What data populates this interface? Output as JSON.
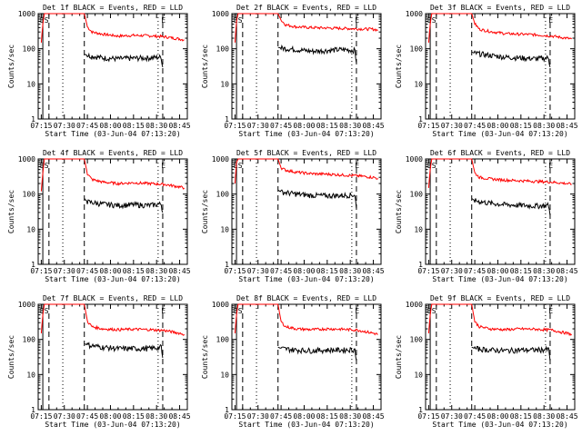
{
  "figure": {
    "background": "#ffffff",
    "events_color": "#000000",
    "lld_color": "#ff0000"
  },
  "common": {
    "title_suffix": "BLACK = Events, RED = LLD",
    "ylabel": "Counts/sec",
    "xlabel": "Start Time (03-Jun-04 07:13:20)",
    "x_tick_labels": [
      "07:15",
      "07:30",
      "07:45",
      "08:00",
      "08:15",
      "08:30",
      "08:45"
    ],
    "y_tick_labels": [
      "1",
      "10",
      "100",
      "1000"
    ],
    "markers": {
      "solid_line_at": "07:16",
      "dashed_lines_at": [
        "07:20",
        "07:43",
        "08:34"
      ],
      "dotted_lines_at": [
        "07:29",
        "08:31"
      ],
      "text": [
        {
          "label": "E",
          "at": "07:14"
        },
        {
          "label": "S",
          "at": "07:17"
        },
        {
          "label": "E",
          "at": "08:33"
        }
      ]
    }
  },
  "chart_data": [
    {
      "type": "line",
      "title": "Det 1f BLACK = Events, RED = LLD",
      "xlabel": "Start Time (03-Jun-04 07:13:20)",
      "ylabel": "Counts/sec",
      "yscale": "log",
      "ylim": [
        1,
        1000
      ],
      "xlim": [
        "07:13",
        "08:50"
      ],
      "series": [
        {
          "name": "LLD",
          "color": "#ff0000",
          "x": [
            "07:15",
            "07:16",
            "07:17",
            "07:43",
            "07:45",
            "07:48",
            "07:55",
            "08:05",
            "08:15",
            "08:25",
            "08:35",
            "08:45",
            "08:48"
          ],
          "values": [
            150,
            500,
            1000,
            1000,
            420,
            300,
            260,
            230,
            240,
            235,
            220,
            190,
            180
          ]
        },
        {
          "name": "Events",
          "color": "#000000",
          "x": [
            "07:43",
            "07:45",
            "07:55",
            "08:05",
            "08:15",
            "08:25",
            "08:33",
            "08:34"
          ],
          "values": [
            70,
            65,
            55,
            52,
            54,
            55,
            58,
            30
          ]
        }
      ]
    },
    {
      "type": "line",
      "title": "Det 2f BLACK = Events, RED = LLD",
      "xlabel": "Start Time (03-Jun-04 07:13:20)",
      "ylabel": "Counts/sec",
      "yscale": "log",
      "ylim": [
        1,
        1000
      ],
      "xlim": [
        "07:13",
        "08:50"
      ],
      "series": [
        {
          "name": "LLD",
          "color": "#ff0000",
          "x": [
            "07:15",
            "07:16",
            "07:17",
            "07:43",
            "07:45",
            "07:48",
            "07:55",
            "08:05",
            "08:15",
            "08:25",
            "08:35",
            "08:45",
            "08:48"
          ],
          "values": [
            150,
            600,
            1000,
            1000,
            650,
            480,
            420,
            400,
            390,
            380,
            370,
            360,
            340
          ]
        },
        {
          "name": "Events",
          "color": "#000000",
          "x": [
            "07:43",
            "07:45",
            "07:55",
            "08:05",
            "08:15",
            "08:25",
            "08:33",
            "08:34"
          ],
          "values": [
            110,
            105,
            95,
            85,
            90,
            95,
            90,
            40
          ]
        }
      ]
    },
    {
      "type": "line",
      "title": "Det 3f BLACK = Events, RED = LLD",
      "xlabel": "Start Time (03-Jun-04 07:13:20)",
      "ylabel": "Counts/sec",
      "yscale": "log",
      "ylim": [
        1,
        1000
      ],
      "xlim": [
        "07:13",
        "08:50"
      ],
      "series": [
        {
          "name": "LLD",
          "color": "#ff0000",
          "x": [
            "07:15",
            "07:16",
            "07:17",
            "07:43",
            "07:45",
            "07:48",
            "07:55",
            "08:05",
            "08:15",
            "08:25",
            "08:35",
            "08:45",
            "08:48"
          ],
          "values": [
            150,
            500,
            1000,
            1000,
            520,
            360,
            310,
            270,
            260,
            250,
            230,
            200,
            190
          ]
        },
        {
          "name": "Events",
          "color": "#000000",
          "x": [
            "07:43",
            "07:45",
            "07:55",
            "08:05",
            "08:15",
            "08:25",
            "08:33",
            "08:34"
          ],
          "values": [
            80,
            75,
            65,
            58,
            55,
            52,
            55,
            30
          ]
        }
      ]
    },
    {
      "type": "line",
      "title": "Det 4f BLACK = Events, RED = LLD",
      "xlabel": "Start Time (03-Jun-04 07:13:20)",
      "ylabel": "Counts/sec",
      "yscale": "log",
      "ylim": [
        1,
        1000
      ],
      "xlim": [
        "07:13",
        "08:50"
      ],
      "series": [
        {
          "name": "LLD",
          "color": "#ff0000",
          "x": [
            "07:15",
            "07:16",
            "07:17",
            "07:43",
            "07:45",
            "07:48",
            "07:55",
            "08:05",
            "08:15",
            "08:25",
            "08:35",
            "08:45",
            "08:48"
          ],
          "values": [
            120,
            400,
            1000,
            1000,
            380,
            260,
            220,
            200,
            210,
            200,
            190,
            160,
            150
          ]
        },
        {
          "name": "Events",
          "color": "#000000",
          "x": [
            "07:43",
            "07:45",
            "07:55",
            "08:05",
            "08:15",
            "08:25",
            "08:33",
            "08:34"
          ],
          "values": [
            75,
            60,
            52,
            48,
            50,
            48,
            52,
            30
          ]
        }
      ]
    },
    {
      "type": "line",
      "title": "Det 5f BLACK = Events, RED = LLD",
      "xlabel": "Start Time (03-Jun-04 07:13:20)",
      "ylabel": "Counts/sec",
      "yscale": "log",
      "ylim": [
        1,
        1000
      ],
      "xlim": [
        "07:13",
        "08:50"
      ],
      "series": [
        {
          "name": "LLD",
          "color": "#ff0000",
          "x": [
            "07:15",
            "07:16",
            "07:17",
            "07:43",
            "07:45",
            "07:48",
            "07:55",
            "08:05",
            "08:15",
            "08:25",
            "08:35",
            "08:45",
            "08:48"
          ],
          "values": [
            200,
            800,
            1000,
            1000,
            560,
            480,
            420,
            380,
            370,
            350,
            330,
            300,
            280
          ]
        },
        {
          "name": "Events",
          "color": "#000000",
          "x": [
            "07:43",
            "07:45",
            "07:55",
            "08:05",
            "08:15",
            "08:25",
            "08:33",
            "08:34"
          ],
          "values": [
            130,
            115,
            100,
            92,
            90,
            92,
            95,
            40
          ]
        }
      ]
    },
    {
      "type": "line",
      "title": "Det 6f BLACK = Events, RED = LLD",
      "xlabel": "Start Time (03-Jun-04 07:13:20)",
      "ylabel": "Counts/sec",
      "yscale": "log",
      "ylim": [
        1,
        1000
      ],
      "xlim": [
        "07:13",
        "08:50"
      ],
      "series": [
        {
          "name": "LLD",
          "color": "#ff0000",
          "x": [
            "07:15",
            "07:16",
            "07:17",
            "07:43",
            "07:45",
            "07:48",
            "07:55",
            "08:05",
            "08:15",
            "08:25",
            "08:35",
            "08:45",
            "08:48"
          ],
          "values": [
            150,
            500,
            1000,
            1000,
            400,
            300,
            270,
            250,
            240,
            230,
            220,
            200,
            190
          ]
        },
        {
          "name": "Events",
          "color": "#000000",
          "x": [
            "07:43",
            "07:45",
            "07:55",
            "08:05",
            "08:15",
            "08:25",
            "08:33",
            "08:34"
          ],
          "values": [
            75,
            65,
            55,
            50,
            48,
            46,
            48,
            25
          ]
        }
      ]
    },
    {
      "type": "line",
      "title": "Det 7f BLACK = Events, RED = LLD",
      "xlabel": "Start Time (03-Jun-04 07:13:20)",
      "ylabel": "Counts/sec",
      "yscale": "log",
      "ylim": [
        1,
        1000
      ],
      "xlim": [
        "07:13",
        "08:50"
      ],
      "series": [
        {
          "name": "LLD",
          "color": "#ff0000",
          "x": [
            "07:15",
            "07:16",
            "07:17",
            "07:43",
            "07:45",
            "07:48",
            "07:55",
            "08:05",
            "08:15",
            "08:25",
            "08:35",
            "08:45",
            "08:48"
          ],
          "values": [
            150,
            500,
            1000,
            1000,
            330,
            230,
            200,
            190,
            195,
            190,
            180,
            150,
            140
          ]
        },
        {
          "name": "Events",
          "color": "#000000",
          "x": [
            "07:43",
            "07:45",
            "07:55",
            "08:05",
            "08:15",
            "08:25",
            "08:33",
            "08:34"
          ],
          "values": [
            75,
            70,
            60,
            55,
            55,
            55,
            60,
            30
          ]
        }
      ]
    },
    {
      "type": "line",
      "title": "Det 8f BLACK = Events, RED = LLD",
      "xlabel": "Start Time (03-Jun-04 07:13:20)",
      "ylabel": "Counts/sec",
      "yscale": "log",
      "ylim": [
        1,
        1000
      ],
      "xlim": [
        "07:13",
        "08:50"
      ],
      "series": [
        {
          "name": "LLD",
          "color": "#ff0000",
          "x": [
            "07:15",
            "07:16",
            "07:17",
            "07:43",
            "07:45",
            "07:48",
            "07:55",
            "08:05",
            "08:15",
            "08:25",
            "08:35",
            "08:45",
            "08:48"
          ],
          "values": [
            150,
            500,
            1000,
            1000,
            320,
            230,
            200,
            190,
            200,
            195,
            185,
            150,
            140
          ]
        },
        {
          "name": "Events",
          "color": "#000000",
          "x": [
            "07:43",
            "07:45",
            "07:55",
            "08:05",
            "08:15",
            "08:25",
            "08:33",
            "08:34"
          ],
          "values": [
            60,
            55,
            50,
            48,
            50,
            50,
            52,
            25
          ]
        }
      ]
    },
    {
      "type": "line",
      "title": "Det 9f BLACK = Events, RED = LLD",
      "xlabel": "Start Time (03-Jun-04 07:13:20)",
      "ylabel": "Counts/sec",
      "yscale": "log",
      "ylim": [
        1,
        1000
      ],
      "xlim": [
        "07:13",
        "08:50"
      ],
      "series": [
        {
          "name": "LLD",
          "color": "#ff0000",
          "x": [
            "07:15",
            "07:16",
            "07:17",
            "07:43",
            "07:45",
            "07:48",
            "07:55",
            "08:05",
            "08:15",
            "08:25",
            "08:35",
            "08:45",
            "08:48"
          ],
          "values": [
            150,
            500,
            1000,
            1000,
            320,
            230,
            200,
            190,
            200,
            195,
            185,
            150,
            140
          ]
        },
        {
          "name": "Events",
          "color": "#000000",
          "x": [
            "07:43",
            "07:45",
            "07:55",
            "08:05",
            "08:15",
            "08:25",
            "08:33",
            "08:34"
          ],
          "values": [
            60,
            55,
            50,
            48,
            50,
            50,
            52,
            25
          ]
        }
      ]
    }
  ]
}
